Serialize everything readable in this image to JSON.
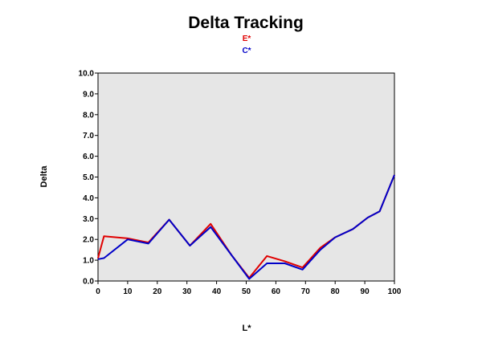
{
  "chart_data": {
    "type": "line",
    "title": "Delta Tracking",
    "xlabel": "L*",
    "ylabel": "Delta",
    "xlim": [
      0,
      100
    ],
    "ylim": [
      0,
      10
    ],
    "grid": false,
    "legend_placement": "top-center",
    "x_ticks": [
      0,
      10,
      20,
      30,
      40,
      50,
      60,
      70,
      80,
      90,
      100
    ],
    "x_tick_labels": [
      "0",
      "10",
      "20",
      "30",
      "40",
      "50",
      "60",
      "70",
      "80",
      "90",
      "100"
    ],
    "y_ticks": [
      0,
      1,
      2,
      3,
      4,
      5,
      6,
      7,
      8,
      9,
      10
    ],
    "y_tick_labels": [
      "0.0",
      "1.0",
      "2.0",
      "3.0",
      "4.0",
      "5.0",
      "6.0",
      "7.0",
      "8.0",
      "9.0",
      "10.0"
    ],
    "series": [
      {
        "name": "E*",
        "color": "#e00000",
        "x": [
          0,
          2,
          10,
          17,
          24,
          31,
          38,
          45,
          51,
          57,
          63,
          69,
          75,
          80,
          86,
          91,
          95,
          100
        ],
        "y": [
          1.1,
          2.15,
          2.05,
          1.85,
          2.95,
          1.7,
          2.75,
          1.25,
          0.15,
          1.2,
          0.95,
          0.65,
          1.6,
          2.1,
          2.5,
          3.05,
          3.35,
          5.1
        ]
      },
      {
        "name": "C*",
        "color": "#0000c8",
        "x": [
          0,
          2,
          10,
          17,
          24,
          31,
          38,
          45,
          51,
          57,
          63,
          69,
          75,
          80,
          86,
          91,
          95,
          100
        ],
        "y": [
          1.05,
          1.1,
          2.0,
          1.8,
          2.95,
          1.7,
          2.6,
          1.25,
          0.1,
          0.85,
          0.85,
          0.55,
          1.5,
          2.1,
          2.5,
          3.05,
          3.35,
          5.1
        ]
      }
    ],
    "colors": {
      "plot_background": "#e6e6e6",
      "axis": "#000000"
    }
  }
}
